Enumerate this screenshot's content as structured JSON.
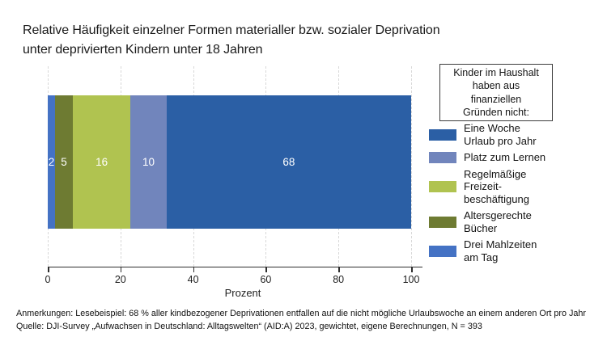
{
  "title": {
    "line1": "Relative Häufigkeit einzelner Formen materialler bzw. sozialer Deprivation",
    "line2": "unter deprivierten Kindern unter 18 Jahren"
  },
  "chart_data": {
    "type": "bar",
    "orientation": "horizontal",
    "stacked": true,
    "title": "Relative Häufigkeit einzelner Formen materialler bzw. sozialer Deprivation unter deprivierten Kindern unter 18 Jahren",
    "xlabel": "Prozent",
    "x_ticks": [
      0,
      20,
      40,
      60,
      80,
      100
    ],
    "xlim": [
      0,
      100
    ],
    "grid": "vertical-dashed",
    "legend_position": "right",
    "segments": [
      {
        "label": "Drei Mahlzeiten am Tag",
        "value": 2,
        "color": "#4472C4"
      },
      {
        "label": "Altersgerechte Bücher",
        "value": 5,
        "color": "#6E7B32"
      },
      {
        "label": "Regelmäßige Freizeitbeschäftigung",
        "value": 16,
        "color": "#B0C350"
      },
      {
        "label": "Platz zum Lernen",
        "value": 10,
        "color": "#7185BC"
      },
      {
        "label": "Eine Woche Urlaub pro Jahr",
        "value": 68,
        "color": "#2B5FA5"
      }
    ]
  },
  "legend": {
    "title_lines": [
      "Kinder im Haushalt",
      "haben aus",
      "finanziellen",
      "Gründen nicht:"
    ],
    "items": [
      {
        "lines": [
          "Eine Woche",
          "Urlaub pro Jahr"
        ],
        "color": "#2B5FA5"
      },
      {
        "lines": [
          "Platz zum Lernen"
        ],
        "color": "#7185BC"
      },
      {
        "lines": [
          "Regelmäßige",
          "Freizeit-",
          "beschäftigung"
        ],
        "color": "#B0C350"
      },
      {
        "lines": [
          "Altersgerechte",
          "Bücher"
        ],
        "color": "#6E7B32"
      },
      {
        "lines": [
          "Drei Mahlzeiten",
          "am Tag"
        ],
        "color": "#4472C4"
      }
    ]
  },
  "axis": {
    "xlabel": "Prozent"
  },
  "footnotes": {
    "anmerkungen": "Anmerkungen: Lesebeispiel: 68 % aller kindbezogener Deprivationen entfallen auf die nicht mögliche Urlaubswoche an einem anderen Ort pro Jahr",
    "quelle": "Quelle: DJI-Survey „Aufwachsen in Deutschland: Alltagswelten“ (AID:A) 2023, gewichtet, eigene Berechnungen, N = 393"
  }
}
